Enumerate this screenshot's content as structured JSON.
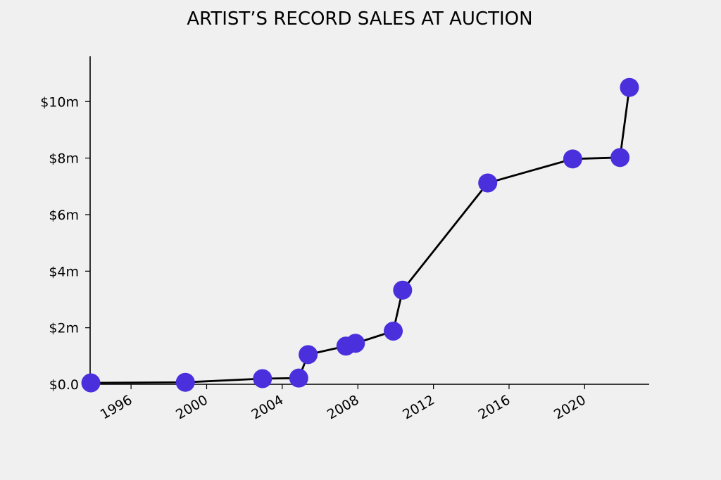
{
  "chart_data": {
    "type": "line",
    "title": "ARTIST’S RECORD SALES AT AUCTION",
    "xlabel": "",
    "ylabel": "",
    "x_axis": {
      "type": "date",
      "range": [
        "1993-11-01",
        "2023-06-01"
      ],
      "tick_values": [
        "1996-01-01",
        "2000-01-01",
        "2004-01-01",
        "2008-01-01",
        "2012-01-01",
        "2016-01-01",
        "2020-01-01"
      ],
      "tick_labels": [
        "1996",
        "2000",
        "2004",
        "2008",
        "2012",
        "2016",
        "2020"
      ]
    },
    "y_axis": {
      "range": [
        0,
        11.6
      ],
      "unit": "millions USD",
      "tick_values": [
        0,
        2,
        4,
        6,
        8,
        10
      ],
      "tick_labels": [
        "$0.0",
        "$2m",
        "$4m",
        "$6m",
        "$8m",
        "$10m"
      ]
    },
    "grid": false,
    "legend": "none",
    "marker_color": "#4a30dc",
    "line_color": "#000000",
    "series": [
      {
        "points": [
          {
            "x": "1993-11-15",
            "y": 0.05
          },
          {
            "x": "1998-11-15",
            "y": 0.07
          },
          {
            "x": "2002-12-15",
            "y": 0.2
          },
          {
            "x": "2004-11-15",
            "y": 0.22
          },
          {
            "x": "2005-05-15",
            "y": 1.05
          },
          {
            "x": "2007-05-15",
            "y": 1.35
          },
          {
            "x": "2007-11-15",
            "y": 1.45
          },
          {
            "x": "2009-11-15",
            "y": 1.88
          },
          {
            "x": "2010-05-15",
            "y": 3.33
          },
          {
            "x": "2014-11-15",
            "y": 7.12
          },
          {
            "x": "2019-05-15",
            "y": 7.97
          },
          {
            "x": "2021-11-15",
            "y": 8.02
          },
          {
            "x": "2022-05-15",
            "y": 10.5
          }
        ]
      }
    ]
  }
}
